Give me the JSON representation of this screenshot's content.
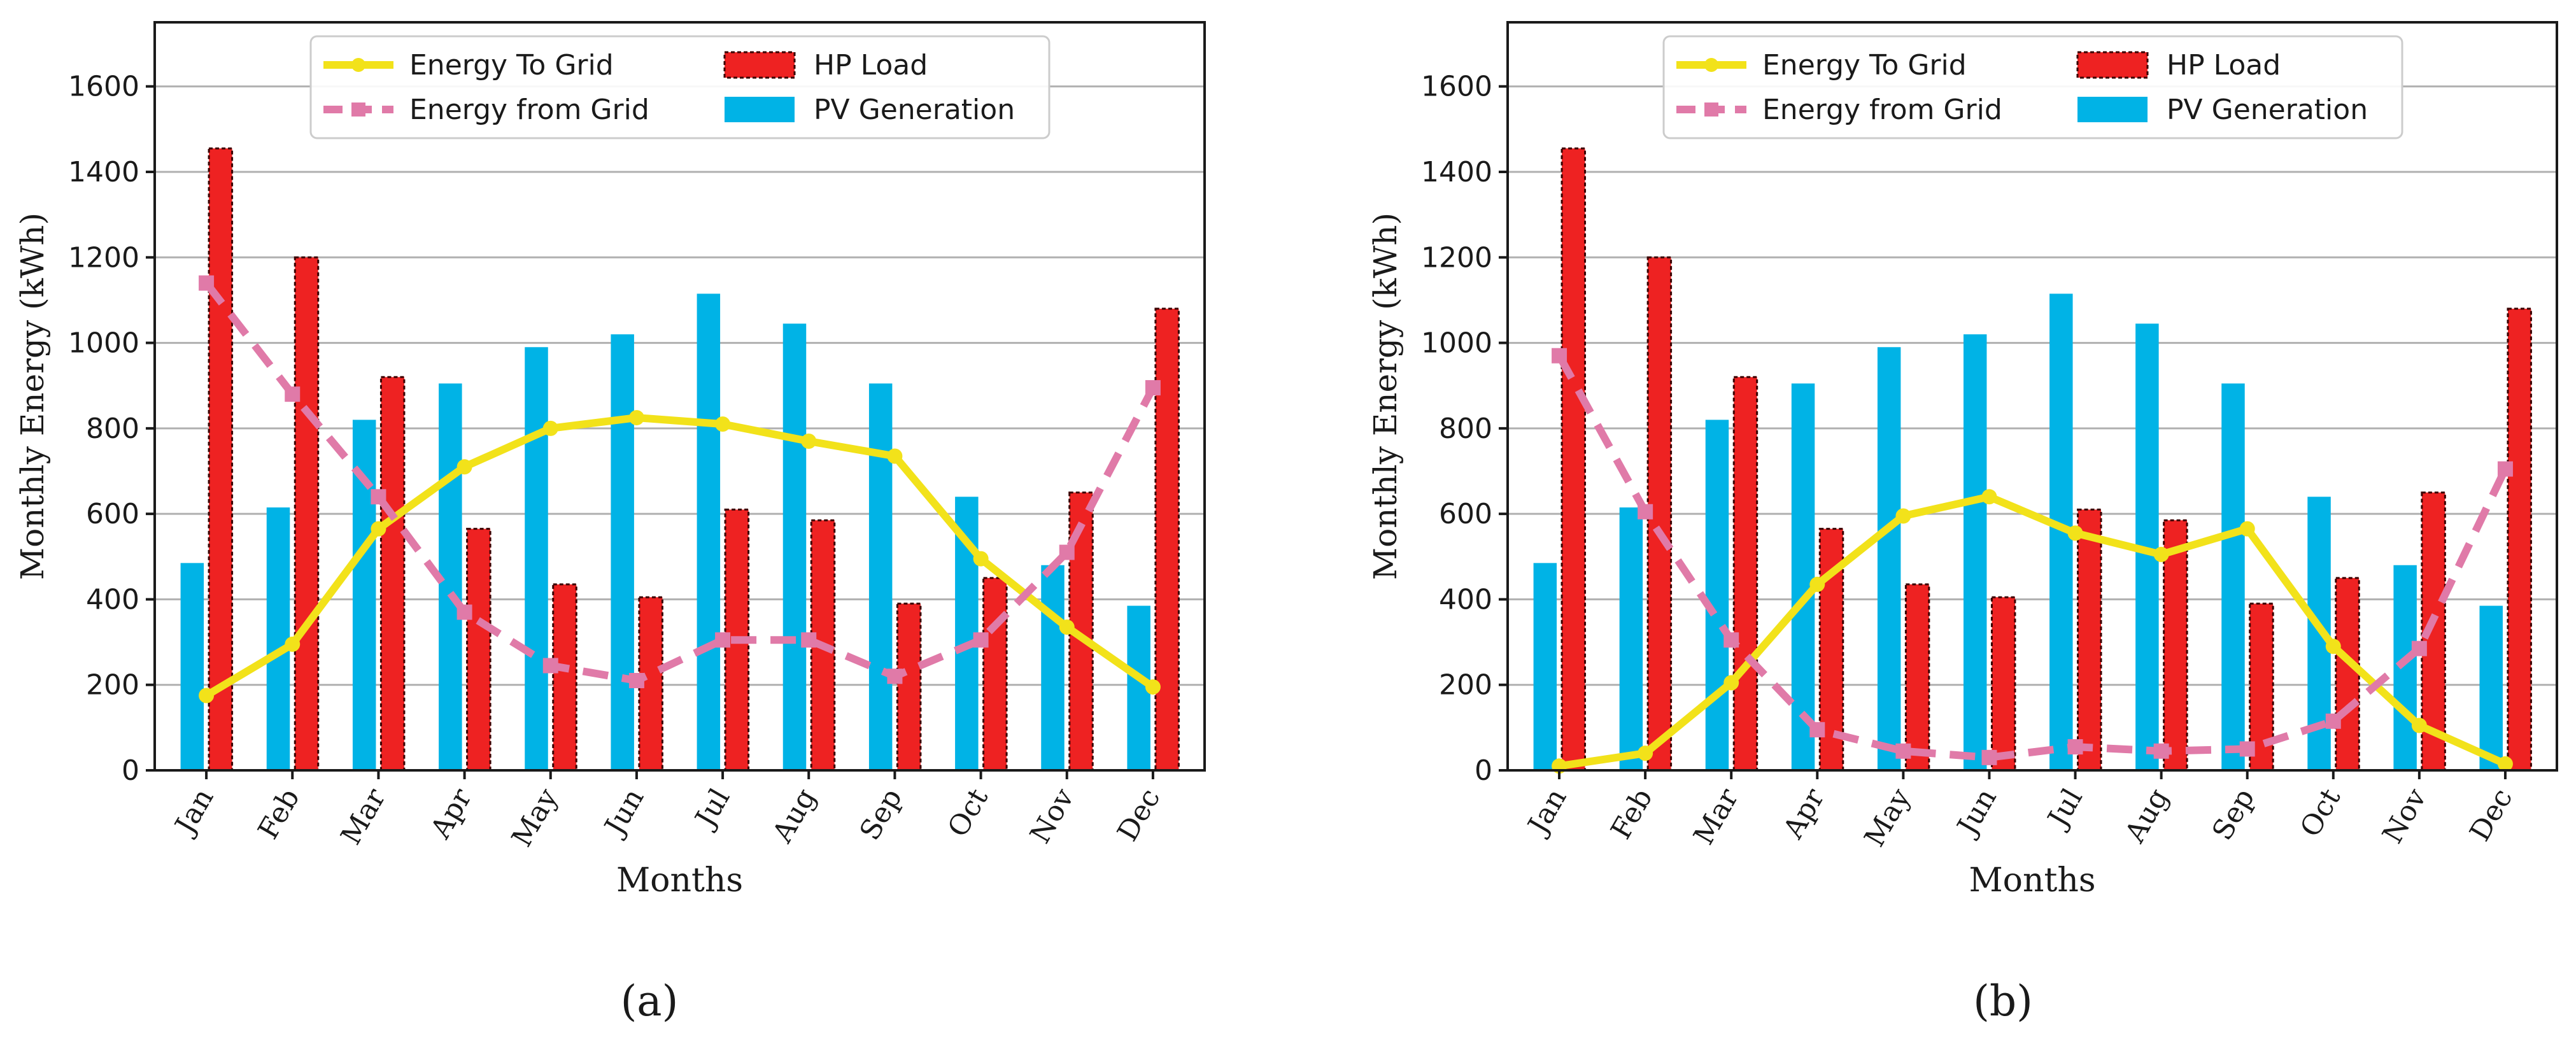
{
  "chart_data": [
    {
      "type": "bar",
      "panel_label": "(a)",
      "xlabel": "Months",
      "ylabel": "Monthly Energy (kWh)",
      "ylim": [
        0,
        1750
      ],
      "yticks": [
        0,
        200,
        400,
        600,
        800,
        1000,
        1200,
        1400,
        1600
      ],
      "grid": "horizontal",
      "legend": "top-center",
      "categories": [
        "Jan",
        "Feb",
        "Mar",
        "Apr",
        "May",
        "Jun",
        "Jul",
        "Aug",
        "Sep",
        "Oct",
        "Nov",
        "Dec"
      ],
      "series": [
        {
          "name": "PV Generation",
          "kind": "bar",
          "color": "#00b3e6",
          "values": [
            485,
            615,
            820,
            905,
            990,
            1020,
            1115,
            1045,
            905,
            640,
            480,
            385
          ]
        },
        {
          "name": "HP Load",
          "kind": "bar",
          "color": "#ee2222",
          "values": [
            1455,
            1200,
            920,
            565,
            435,
            405,
            610,
            585,
            390,
            450,
            650,
            1080
          ]
        },
        {
          "name": "Energy To Grid",
          "kind": "line",
          "color": "#f2e21a",
          "values": [
            175,
            295,
            565,
            710,
            800,
            825,
            810,
            770,
            735,
            495,
            335,
            195
          ]
        },
        {
          "name": "Energy from Grid",
          "kind": "line-dashed",
          "color": "#e07aa8",
          "values": [
            1140,
            880,
            640,
            370,
            245,
            210,
            305,
            305,
            220,
            305,
            510,
            895
          ]
        }
      ]
    },
    {
      "type": "bar",
      "panel_label": "(b)",
      "xlabel": "Months",
      "ylabel": "Monthly Energy (kWh)",
      "ylim": [
        0,
        1750
      ],
      "yticks": [
        0,
        200,
        400,
        600,
        800,
        1000,
        1200,
        1400,
        1600
      ],
      "grid": "horizontal",
      "legend": "top-center",
      "categories": [
        "Jan",
        "Feb",
        "Mar",
        "Apr",
        "May",
        "Jun",
        "Jul",
        "Aug",
        "Sep",
        "Oct",
        "Nov",
        "Dec"
      ],
      "series": [
        {
          "name": "PV Generation",
          "kind": "bar",
          "color": "#00b3e6",
          "values": [
            485,
            615,
            820,
            905,
            990,
            1020,
            1115,
            1045,
            905,
            640,
            480,
            385
          ]
        },
        {
          "name": "HP Load",
          "kind": "bar",
          "color": "#ee2222",
          "values": [
            1455,
            1200,
            920,
            565,
            435,
            405,
            610,
            585,
            390,
            450,
            650,
            1080
          ]
        },
        {
          "name": "Energy To Grid",
          "kind": "line",
          "color": "#f2e21a",
          "values": [
            10,
            40,
            205,
            435,
            595,
            640,
            555,
            505,
            565,
            290,
            105,
            15
          ]
        },
        {
          "name": "Energy from Grid",
          "kind": "line-dashed",
          "color": "#e07aa8",
          "values": [
            970,
            605,
            305,
            95,
            45,
            30,
            55,
            45,
            50,
            115,
            285,
            705
          ]
        }
      ]
    }
  ]
}
